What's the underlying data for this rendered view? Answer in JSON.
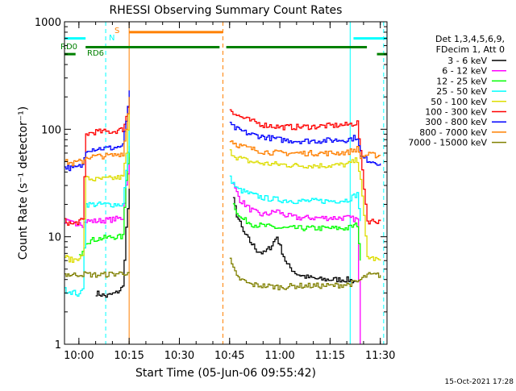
{
  "chart_data": {
    "type": "line",
    "title": "RHESSI Observing Summary Count Rates",
    "xlabel": "Start Time (05-Jun-06 09:55:42)",
    "ylabel": "Count Rate (s⁻¹ detector⁻¹)",
    "y_scale": "log",
    "ylim": [
      1,
      1000
    ],
    "xlim": [
      "09:55:42",
      "11:32:00"
    ],
    "y_ticks": [
      {
        "value": 1,
        "label": "1"
      },
      {
        "value": 10,
        "label": "10"
      },
      {
        "value": 100,
        "label": "100"
      },
      {
        "value": 1000,
        "label": "1000"
      }
    ],
    "x_ticks": [
      {
        "value": "10:00",
        "label": "10:00"
      },
      {
        "value": "10:15",
        "label": "10:15"
      },
      {
        "value": "10:30",
        "label": "10:30"
      },
      {
        "value": "10:45",
        "label": "10:45"
      },
      {
        "value": "11:00",
        "label": "11:00"
      },
      {
        "value": "11:15",
        "label": "11:15"
      },
      {
        "value": "11:30",
        "label": "11:30"
      }
    ],
    "legend": {
      "placement": "right",
      "header": [
        "Det 1,3,4,5,6,9,",
        "FDecim 1, Att 0"
      ],
      "entries": [
        {
          "label": "3 - 6 keV",
          "color": "#000000"
        },
        {
          "label": "6 - 12 keV",
          "color": "#ff00ff"
        },
        {
          "label": "12 - 25 keV",
          "color": "#00ff00"
        },
        {
          "label": "25 - 50 keV",
          "color": "#00ffff"
        },
        {
          "label": "50 - 100 keV",
          "color": "#dddd00"
        },
        {
          "label": "100 - 300 keV",
          "color": "#ff0000"
        },
        {
          "label": "300 - 800 keV",
          "color": "#0000ff"
        },
        {
          "label": "800 - 7000 keV",
          "color": "#ff8000"
        },
        {
          "label": "7000 - 15000 keV",
          "color": "#808000"
        }
      ]
    },
    "series": [
      {
        "name": "3 - 6 keV",
        "color": "#000000",
        "segments": [
          [
            [
              "10:05",
              3.0
            ],
            [
              "10:08",
              2.8
            ],
            [
              "10:11",
              3.0
            ],
            [
              "10:13",
              3.4
            ],
            [
              "10:14",
              12
            ],
            [
              "10:15",
              28
            ]
          ],
          [
            [
              "10:46",
              22
            ],
            [
              "10:47",
              16
            ],
            [
              "10:49",
              11
            ],
            [
              "10:51",
              9
            ],
            [
              "10:53",
              7.5
            ],
            [
              "10:55",
              7
            ],
            [
              "10:57",
              8
            ],
            [
              "10:59",
              10
            ],
            [
              "11:00",
              8
            ],
            [
              "11:02",
              5.5
            ],
            [
              "11:05",
              4.5
            ],
            [
              "11:08",
              4.2
            ],
            [
              "11:12",
              4.0
            ],
            [
              "11:16",
              4.0
            ],
            [
              "11:20",
              4.0
            ],
            [
              "11:23",
              3.8
            ]
          ]
        ]
      },
      {
        "name": "6 - 12 keV",
        "color": "#ff00ff",
        "segments": [
          [
            [
              "09:55:42",
              14
            ],
            [
              "09:59",
              13
            ],
            [
              "10:00",
              14
            ],
            [
              "10:01",
              13
            ],
            [
              "10:02",
              14
            ],
            [
              "10:05",
              14
            ],
            [
              "10:10",
              14.5
            ],
            [
              "10:13",
              15
            ],
            [
              "10:14",
              30
            ],
            [
              "10:15",
              55
            ]
          ],
          [
            [
              "10:46",
              30
            ],
            [
              "10:48",
              22
            ],
            [
              "10:51",
              18
            ],
            [
              "10:54",
              16
            ],
            [
              "10:57",
              16.5
            ],
            [
              "10:59",
              17.5
            ],
            [
              "11:01",
              16
            ],
            [
              "11:05",
              15
            ],
            [
              "11:10",
              15
            ],
            [
              "11:15",
              15
            ],
            [
              "11:20",
              15
            ],
            [
              "11:23",
              14.5
            ],
            [
              "11:24",
              1.0
            ]
          ]
        ]
      },
      {
        "name": "12 - 25 keV",
        "color": "#00ff00",
        "segments": [
          [
            [
              "10:00",
              6.5
            ],
            [
              "10:02",
              9
            ],
            [
              "10:05",
              9.5
            ],
            [
              "10:10",
              10
            ],
            [
              "10:13",
              10
            ],
            [
              "10:14",
              35
            ],
            [
              "10:15",
              70
            ]
          ],
          [
            [
              "10:46",
              20
            ],
            [
              "10:48",
              15
            ],
            [
              "10:52",
              13
            ],
            [
              "10:56",
              12.5
            ],
            [
              "11:00",
              12
            ],
            [
              "11:05",
              12
            ],
            [
              "11:10",
              12
            ],
            [
              "11:15",
              12
            ],
            [
              "11:20",
              12
            ],
            [
              "11:23",
              13
            ],
            [
              "11:24",
              6
            ]
          ]
        ]
      },
      {
        "name": "25 - 50 keV",
        "color": "#00ffff",
        "segments": [
          [
            [
              "09:55:42",
              3.2
            ],
            [
              "09:59",
              3.0
            ],
            [
              "10:00",
              2.8
            ],
            [
              "10:01",
              3.4
            ],
            [
              "10:02",
              20
            ],
            [
              "10:05",
              20
            ],
            [
              "10:10",
              20
            ],
            [
              "10:13",
              20
            ],
            [
              "10:14",
              40
            ],
            [
              "10:15",
              100
            ]
          ],
          [
            [
              "10:45",
              35
            ],
            [
              "10:47",
              28
            ],
            [
              "10:51",
              25
            ],
            [
              "10:55",
              23
            ],
            [
              "11:00",
              22
            ],
            [
              "11:05",
              21.5
            ],
            [
              "11:10",
              21.5
            ],
            [
              "11:15",
              21.5
            ],
            [
              "11:20",
              22
            ],
            [
              "11:23",
              25
            ],
            [
              "11:24",
              14
            ]
          ]
        ]
      },
      {
        "name": "50 - 100 keV",
        "color": "#dddd00",
        "segments": [
          [
            [
              "09:55:42",
              6.5
            ],
            [
              "09:58",
              6.0
            ],
            [
              "10:00",
              6.5
            ],
            [
              "10:01",
              6.5
            ],
            [
              "10:02",
              35
            ],
            [
              "10:05",
              34
            ],
            [
              "10:10",
              35
            ],
            [
              "10:13",
              36
            ],
            [
              "10:14",
              60
            ],
            [
              "10:15",
              150
            ]
          ],
          [
            [
              "10:45",
              62
            ],
            [
              "10:47",
              55
            ],
            [
              "10:51",
              50
            ],
            [
              "10:55",
              48
            ],
            [
              "11:00",
              47
            ],
            [
              "11:05",
              46
            ],
            [
              "11:10",
              46
            ],
            [
              "11:15",
              46
            ],
            [
              "11:20",
              47
            ],
            [
              "11:23",
              52
            ],
            [
              "11:24",
              35
            ],
            [
              "11:26",
              6.5
            ],
            [
              "11:30",
              6.0
            ]
          ]
        ]
      },
      {
        "name": "100 - 300 keV",
        "color": "#ff0000",
        "segments": [
          [
            [
              "09:55:42",
              14
            ],
            [
              "09:58",
              13
            ],
            [
              "10:00",
              14
            ],
            [
              "10:01",
              14
            ],
            [
              "10:02",
              90
            ],
            [
              "10:05",
              95
            ],
            [
              "10:10",
              95
            ],
            [
              "10:13",
              100
            ],
            [
              "10:14",
              130
            ],
            [
              "10:15",
              200
            ]
          ],
          [
            [
              "10:45",
              155
            ],
            [
              "10:47",
              135
            ],
            [
              "10:51",
              120
            ],
            [
              "10:55",
              110
            ],
            [
              "11:00",
              105
            ],
            [
              "11:05",
              105
            ],
            [
              "11:10",
              106
            ],
            [
              "11:15",
              108
            ],
            [
              "11:20",
              110
            ],
            [
              "11:23",
              115
            ],
            [
              "11:24",
              60
            ],
            [
              "11:26",
              14
            ],
            [
              "11:30",
              14
            ]
          ]
        ]
      },
      {
        "name": "300 - 800 keV",
        "color": "#0000ff",
        "segments": [
          [
            [
              "09:55:42",
              45
            ],
            [
              "09:58",
              43
            ],
            [
              "10:00",
              45
            ],
            [
              "10:01",
              46
            ],
            [
              "10:02",
              65
            ],
            [
              "10:05",
              66
            ],
            [
              "10:10",
              67
            ],
            [
              "10:13",
              70
            ],
            [
              "10:14",
              120
            ],
            [
              "10:15",
              230
            ]
          ],
          [
            [
              "10:45",
              110
            ],
            [
              "10:47",
              100
            ],
            [
              "10:51",
              90
            ],
            [
              "10:55",
              85
            ],
            [
              "11:00",
              80
            ],
            [
              "11:05",
              78
            ],
            [
              "11:10",
              78
            ],
            [
              "11:15",
              79
            ],
            [
              "11:20",
              80
            ],
            [
              "11:23",
              85
            ],
            [
              "11:24",
              55
            ],
            [
              "11:26",
              52
            ],
            [
              "11:30",
              48
            ]
          ]
        ]
      },
      {
        "name": "800 - 7000 keV",
        "color": "#ff8000",
        "segments": [
          [
            [
              "09:55:42",
              50
            ],
            [
              "09:58",
              48
            ],
            [
              "10:00",
              50
            ],
            [
              "10:01",
              50
            ],
            [
              "10:02",
              55
            ],
            [
              "10:05",
              56
            ],
            [
              "10:10",
              57
            ],
            [
              "10:13",
              60
            ],
            [
              "10:14",
              100
            ],
            [
              "10:15",
              200
            ]
          ],
          [
            [
              "10:45",
              80
            ],
            [
              "10:47",
              72
            ],
            [
              "10:51",
              66
            ],
            [
              "10:55",
              62
            ],
            [
              "11:00",
              60
            ],
            [
              "11:05",
              60
            ],
            [
              "11:10",
              60
            ],
            [
              "11:15",
              60
            ],
            [
              "11:20",
              61
            ],
            [
              "11:23",
              66
            ],
            [
              "11:24",
              55
            ],
            [
              "11:26",
              58
            ],
            [
              "11:30",
              57
            ]
          ]
        ]
      },
      {
        "name": "7000 - 15000 keV",
        "color": "#808000",
        "segments": [
          [
            [
              "09:55:42",
              4.5
            ],
            [
              "09:58",
              4.4
            ],
            [
              "10:00",
              4.5
            ],
            [
              "10:02",
              4.5
            ],
            [
              "10:05",
              4.4
            ],
            [
              "10:10",
              4.5
            ],
            [
              "10:13",
              4.6
            ],
            [
              "10:15",
              4.7
            ]
          ],
          [
            [
              "10:45",
              6
            ],
            [
              "10:47",
              4.2
            ],
            [
              "10:51",
              3.6
            ],
            [
              "10:55",
              3.5
            ],
            [
              "11:00",
              3.4
            ],
            [
              "11:05",
              3.5
            ],
            [
              "11:10",
              3.5
            ],
            [
              "11:15",
              3.5
            ],
            [
              "11:20",
              3.6
            ],
            [
              "11:23",
              3.8
            ],
            [
              "11:26",
              4.4
            ],
            [
              "11:30",
              4.4
            ]
          ]
        ]
      }
    ],
    "flag_bars": [
      {
        "label": "",
        "color": "#00ffff",
        "y": 700,
        "segments": [
          [
            "09:55:42",
            "10:02"
          ],
          [
            "11:22",
            "11:32"
          ]
        ]
      },
      {
        "label": "S",
        "color": "#ff8000",
        "y": 800,
        "segments": [
          [
            "10:15",
            "10:43"
          ]
        ]
      },
      {
        "label": "N",
        "color": "#00ffff",
        "label_only": true,
        "y": 680,
        "segments": []
      },
      {
        "label": "RD0",
        "color": "#008000",
        "y": 580,
        "segments": [
          [
            "10:02",
            "10:42"
          ],
          [
            "10:44",
            "11:26"
          ]
        ]
      },
      {
        "label": "RD6",
        "color": "#008000",
        "y": 500,
        "segments": [
          [
            "09:55:42",
            "09:59"
          ],
          [
            "11:29",
            "11:32"
          ]
        ]
      }
    ],
    "vertical_lines": [
      {
        "time": "09:55:42",
        "color": "#00ffff",
        "style": "solid"
      },
      {
        "time": "10:08",
        "color": "#00ffff",
        "style": "dashed"
      },
      {
        "time": "10:15",
        "color": "#ff8000",
        "style": "solid"
      },
      {
        "time": "10:43",
        "color": "#ff8000",
        "style": "dashed"
      },
      {
        "time": "11:21",
        "color": "#00ffff",
        "style": "solid"
      },
      {
        "time": "11:31",
        "color": "#00ffff",
        "style": "dashed"
      }
    ],
    "footer_date": "15-Oct-2021 17:28"
  }
}
